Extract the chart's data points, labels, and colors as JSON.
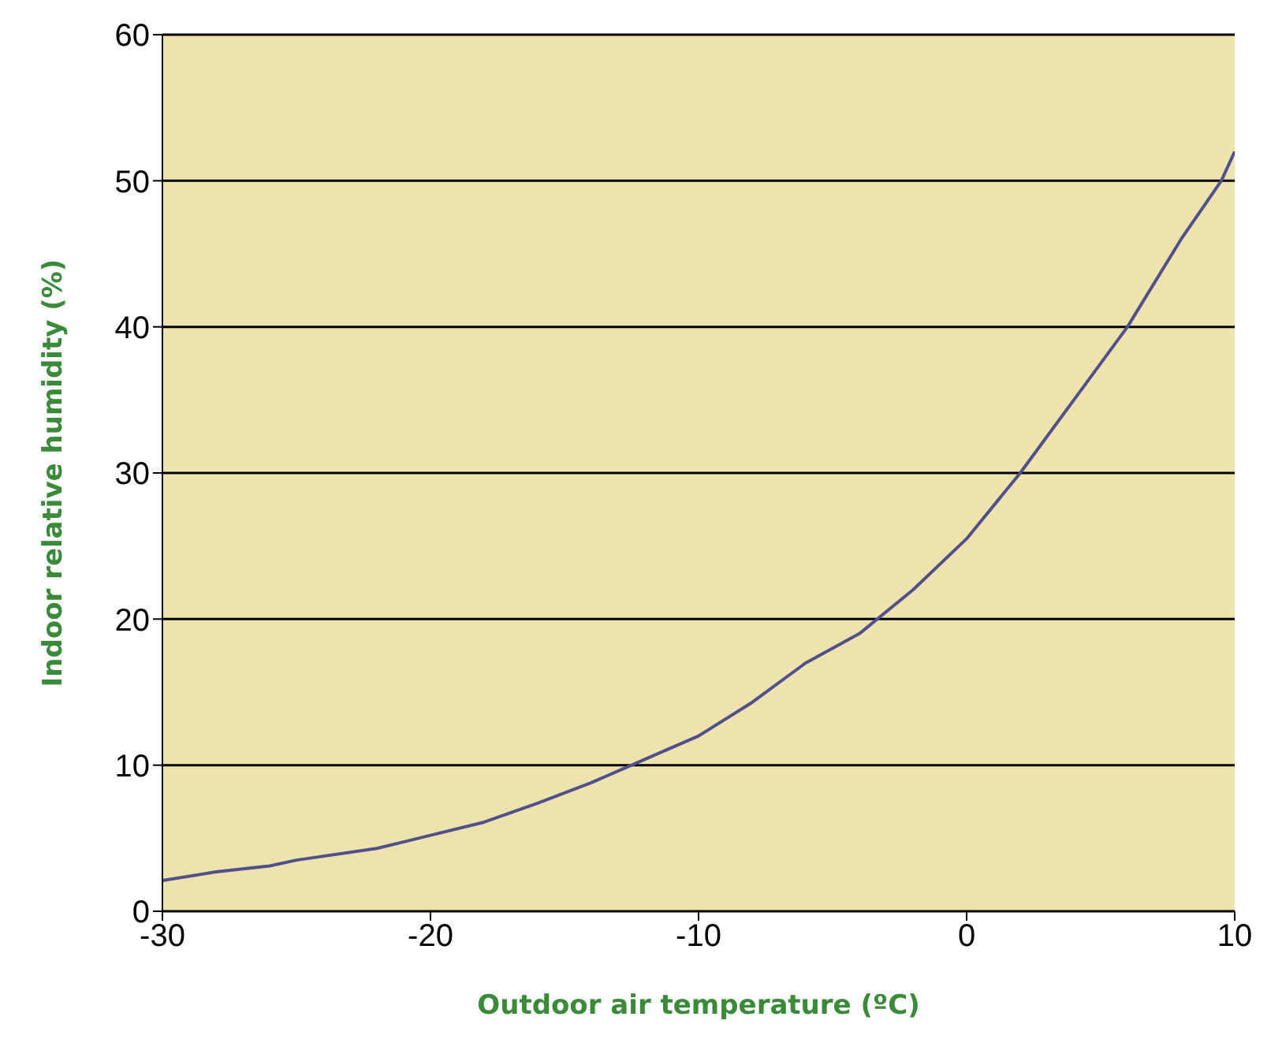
{
  "chart_data": {
    "type": "line",
    "xlabel": "Outdoor air temperature (ºC)",
    "ylabel": "Indoor relative humidity (%)",
    "x": [
      -30,
      -28,
      -26,
      -25,
      -22,
      -20,
      -18,
      -16,
      -14,
      -12.5,
      -10,
      -8,
      -6,
      -4,
      -3,
      -2,
      0,
      2,
      4,
      6,
      8,
      9.5,
      10
    ],
    "series": [
      {
        "color": "#50508c",
        "values": [
          2.1,
          2.7,
          3.1,
          3.5,
          4.3,
          5.2,
          6.1,
          7.4,
          8.8,
          10,
          12,
          14.3,
          17,
          19,
          20.5,
          22,
          25.5,
          30,
          35,
          40,
          46,
          50,
          52
        ]
      }
    ],
    "xlim": [
      -30,
      10
    ],
    "xticks": [
      -30,
      -20,
      -10,
      0,
      10
    ],
    "ylim": [
      0,
      60
    ],
    "yticks": [
      0,
      10,
      20,
      30,
      40,
      50,
      60
    ],
    "grid": "y",
    "marker": "none",
    "line_style": "solid"
  }
}
